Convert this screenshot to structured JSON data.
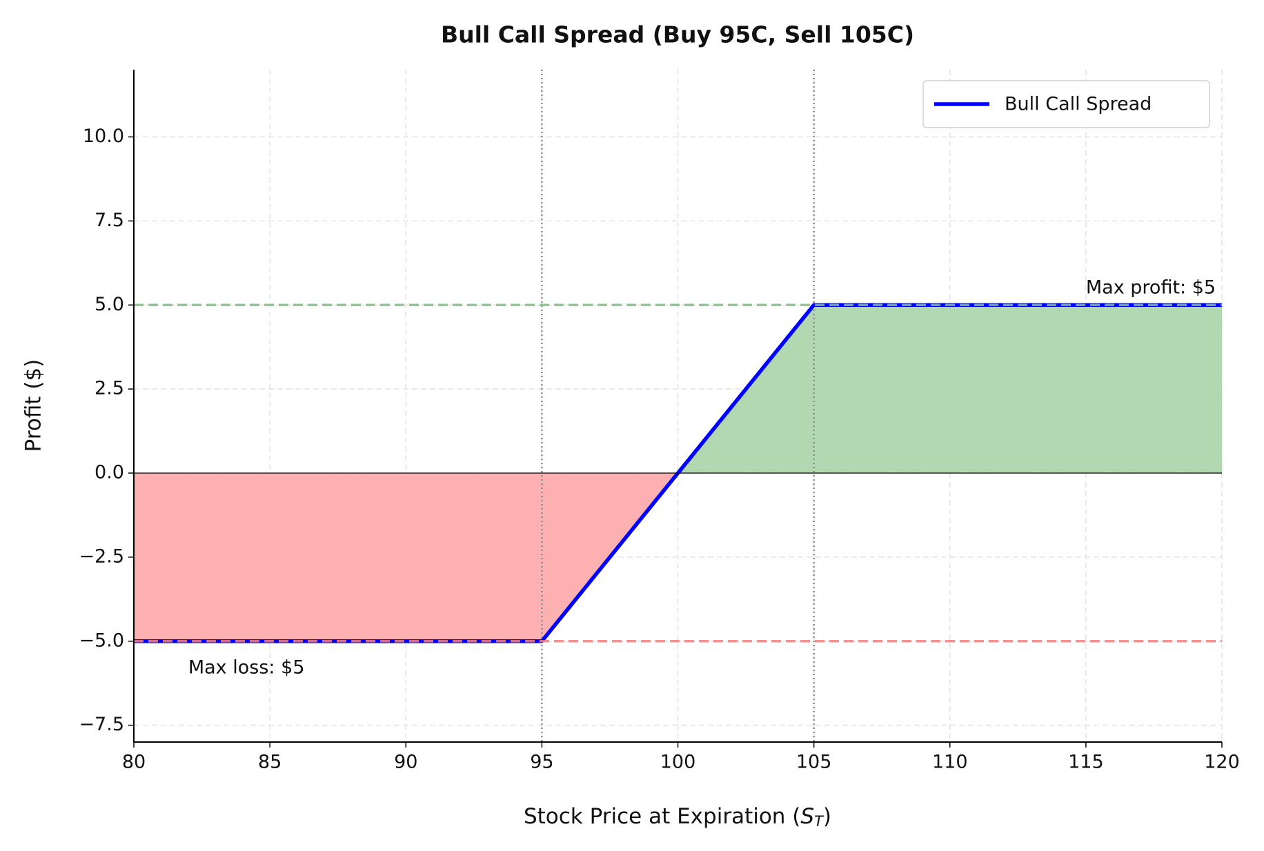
{
  "chart_data": {
    "type": "line",
    "title": "Bull Call Spread (Buy 95C, Sell 105C)",
    "xlabel": {
      "text": "Stock Price at Expiration (",
      "var": "S",
      "sub": "T",
      "end": ")"
    },
    "ylabel": "Profit ($)",
    "x": [
      80,
      95,
      105,
      120
    ],
    "series": [
      {
        "name": "Bull Call Spread",
        "color": "#0000ff",
        "values": [
          -5,
          -5,
          5,
          5
        ]
      }
    ],
    "xlim": [
      80,
      120
    ],
    "ylim": [
      -8,
      12
    ],
    "xticks": [
      80,
      85,
      90,
      95,
      100,
      105,
      110,
      115,
      120
    ],
    "yticks": [
      {
        "value": -7.5,
        "label": "−7.5"
      },
      {
        "value": -5,
        "label": "−5.0"
      },
      {
        "value": -2.5,
        "label": "−2.5"
      },
      {
        "value": 0,
        "label": "0.0"
      },
      2.5,
      {
        "value": 5,
        "label": "5.0"
      },
      7.5,
      {
        "value": 10,
        "label": "10.0"
      }
    ],
    "grid": true,
    "legend": "upper right",
    "profit_fill_color": "#b2d8b2",
    "loss_fill_color": "#fcb0b2",
    "hlines": [
      {
        "y": 5,
        "color": "#7fbf7f"
      },
      {
        "y": -5,
        "color": "#f47f7f"
      },
      {
        "y": 0,
        "color": "#000000"
      }
    ],
    "vlines": [
      95,
      105
    ],
    "annotations": [
      {
        "text": "Max profit: $5",
        "x": 115,
        "y": 5.5
      },
      {
        "text": "Max loss: $5",
        "x": 82,
        "y": -5.8
      }
    ]
  }
}
